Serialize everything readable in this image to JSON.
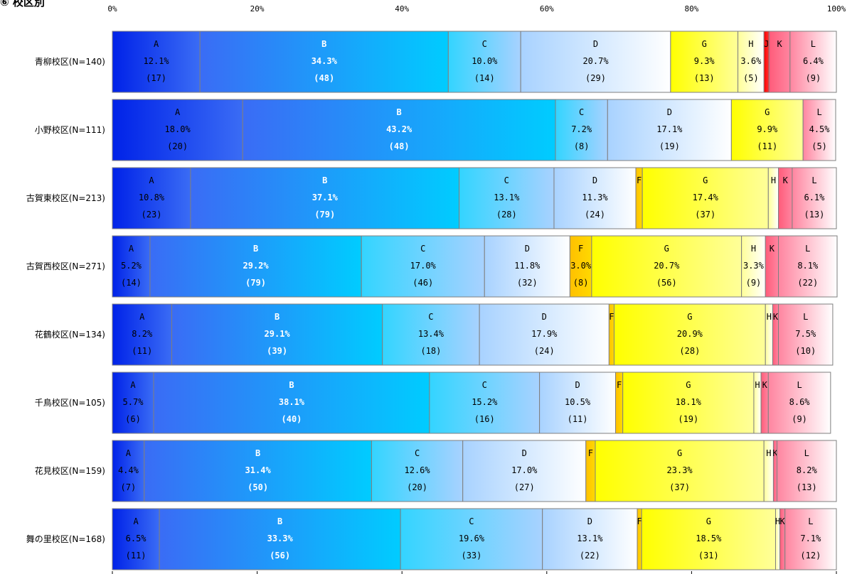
{
  "title": "⑥ 校区別",
  "chart_data": {
    "type": "bar",
    "orientation": "horizontal",
    "stacked": true,
    "percent": true,
    "title": "⑥ 校区別",
    "x_ticks": [
      "0%",
      "20%",
      "40%",
      "60%",
      "80%",
      "100%"
    ],
    "xlim": [
      0,
      100
    ],
    "segment_colors": {
      "A": [
        "#0022e8",
        "#3a6cf5"
      ],
      "B": [
        "#3a6cf5",
        "#00ccff"
      ],
      "C": [
        "#33d4ff",
        "#a8d2ff"
      ],
      "D": [
        "#a8d2ff",
        "#ffffff"
      ],
      "F": [
        "#ffc000",
        "#ffd900"
      ],
      "G": [
        "#ffff00",
        "#ffff99"
      ],
      "H": [
        "#ffff99",
        "#ffffff"
      ],
      "J": [
        "#ff0000",
        "#ff3333"
      ],
      "K": [
        "#ff5c7a",
        "#ff85a0"
      ],
      "L": [
        "#ff85a0",
        "#ffffff"
      ]
    },
    "rows": [
      {
        "label": "青柳校区(N=140)",
        "segments": [
          {
            "key": "A",
            "value": 12.1,
            "pct": "12.1%",
            "count": "(17)",
            "show": "full"
          },
          {
            "key": "B",
            "value": 34.3,
            "pct": "34.3%",
            "count": "(48)",
            "show": "full"
          },
          {
            "key": "C",
            "value": 10.0,
            "pct": "10.0%",
            "count": "(14)",
            "show": "full"
          },
          {
            "key": "D",
            "value": 20.7,
            "pct": "20.7%",
            "count": "(29)",
            "show": "full"
          },
          {
            "key": "G",
            "value": 9.3,
            "pct": "9.3%",
            "count": "(13)",
            "show": "full"
          },
          {
            "key": "H",
            "value": 3.6,
            "pct": "3.6%",
            "count": "(5)",
            "show": "full"
          },
          {
            "key": "J",
            "value": 0.7,
            "pct": "",
            "count": "",
            "show": "key"
          },
          {
            "key": "K",
            "value": 2.9,
            "pct": "",
            "count": "",
            "show": "key"
          },
          {
            "key": "L",
            "value": 6.4,
            "pct": "6.4%",
            "count": "(9)",
            "show": "full"
          }
        ]
      },
      {
        "label": "小野校区(N=111)",
        "segments": [
          {
            "key": "A",
            "value": 18.0,
            "pct": "18.0%",
            "count": "(20)",
            "show": "full"
          },
          {
            "key": "B",
            "value": 43.2,
            "pct": "43.2%",
            "count": "(48)",
            "show": "full"
          },
          {
            "key": "C",
            "value": 7.2,
            "pct": "7.2%",
            "count": "(8)",
            "show": "full"
          },
          {
            "key": "D",
            "value": 17.1,
            "pct": "17.1%",
            "count": "(19)",
            "show": "full"
          },
          {
            "key": "G",
            "value": 9.9,
            "pct": "9.9%",
            "count": "(11)",
            "show": "full"
          },
          {
            "key": "L",
            "value": 4.5,
            "pct": "4.5%",
            "count": "(5)",
            "show": "full"
          }
        ]
      },
      {
        "label": "古賀東校区(N=213)",
        "segments": [
          {
            "key": "A",
            "value": 10.8,
            "pct": "10.8%",
            "count": "(23)",
            "show": "full"
          },
          {
            "key": "B",
            "value": 37.1,
            "pct": "37.1%",
            "count": "(79)",
            "show": "full"
          },
          {
            "key": "C",
            "value": 13.1,
            "pct": "13.1%",
            "count": "(28)",
            "show": "full"
          },
          {
            "key": "D",
            "value": 11.3,
            "pct": "11.3%",
            "count": "(24)",
            "show": "full"
          },
          {
            "key": "F",
            "value": 0.9,
            "pct": "",
            "count": "",
            "show": "key"
          },
          {
            "key": "G",
            "value": 17.4,
            "pct": "17.4%",
            "count": "(37)",
            "show": "full"
          },
          {
            "key": "H",
            "value": 1.4,
            "pct": "",
            "count": "",
            "show": "key"
          },
          {
            "key": "K",
            "value": 1.9,
            "pct": "",
            "count": "",
            "show": "key"
          },
          {
            "key": "L",
            "value": 6.1,
            "pct": "6.1%",
            "count": "(13)",
            "show": "full"
          }
        ]
      },
      {
        "label": "古賀西校区(N=271)",
        "segments": [
          {
            "key": "A",
            "value": 5.2,
            "pct": "5.2%",
            "count": "(14)",
            "show": "full"
          },
          {
            "key": "B",
            "value": 29.2,
            "pct": "29.2%",
            "count": "(79)",
            "show": "full"
          },
          {
            "key": "C",
            "value": 17.0,
            "pct": "17.0%",
            "count": "(46)",
            "show": "full"
          },
          {
            "key": "D",
            "value": 11.8,
            "pct": "11.8%",
            "count": "(32)",
            "show": "full"
          },
          {
            "key": "F",
            "value": 3.0,
            "pct": "3.0%",
            "count": "(8)",
            "show": "full"
          },
          {
            "key": "G",
            "value": 20.7,
            "pct": "20.7%",
            "count": "(56)",
            "show": "full"
          },
          {
            "key": "H",
            "value": 3.3,
            "pct": "3.3%",
            "count": "(9)",
            "show": "full"
          },
          {
            "key": "K",
            "value": 1.8,
            "pct": "",
            "count": "",
            "show": "key"
          },
          {
            "key": "L",
            "value": 8.1,
            "pct": "8.1%",
            "count": "(22)",
            "show": "full"
          }
        ]
      },
      {
        "label": "花鶴校区(N=134)",
        "segments": [
          {
            "key": "A",
            "value": 8.2,
            "pct": "8.2%",
            "count": "(11)",
            "show": "full"
          },
          {
            "key": "B",
            "value": 29.1,
            "pct": "29.1%",
            "count": "(39)",
            "show": "full"
          },
          {
            "key": "C",
            "value": 13.4,
            "pct": "13.4%",
            "count": "(18)",
            "show": "full"
          },
          {
            "key": "D",
            "value": 17.9,
            "pct": "17.9%",
            "count": "(24)",
            "show": "full"
          },
          {
            "key": "F",
            "value": 0.7,
            "pct": "",
            "count": "",
            "show": "key"
          },
          {
            "key": "G",
            "value": 20.9,
            "pct": "20.9%",
            "count": "(28)",
            "show": "full"
          },
          {
            "key": "H",
            "value": 1.0,
            "pct": "",
            "count": "",
            "show": "key"
          },
          {
            "key": "K",
            "value": 0.8,
            "pct": "",
            "count": "",
            "show": "key"
          },
          {
            "key": "L",
            "value": 7.5,
            "pct": "7.5%",
            "count": "(10)",
            "show": "full"
          }
        ]
      },
      {
        "label": "千鳥校区(N=105)",
        "segments": [
          {
            "key": "A",
            "value": 5.7,
            "pct": "5.7%",
            "count": "(6)",
            "show": "full"
          },
          {
            "key": "B",
            "value": 38.1,
            "pct": "38.1%",
            "count": "(40)",
            "show": "full"
          },
          {
            "key": "C",
            "value": 15.2,
            "pct": "15.2%",
            "count": "(16)",
            "show": "full"
          },
          {
            "key": "D",
            "value": 10.5,
            "pct": "10.5%",
            "count": "(11)",
            "show": "full"
          },
          {
            "key": "F",
            "value": 1.0,
            "pct": "",
            "count": "",
            "show": "key"
          },
          {
            "key": "G",
            "value": 18.1,
            "pct": "18.1%",
            "count": "(19)",
            "show": "full"
          },
          {
            "key": "H",
            "value": 1.0,
            "pct": "",
            "count": "",
            "show": "key"
          },
          {
            "key": "K",
            "value": 1.0,
            "pct": "",
            "count": "",
            "show": "key"
          },
          {
            "key": "L",
            "value": 8.6,
            "pct": "8.6%",
            "count": "(9)",
            "show": "full"
          }
        ]
      },
      {
        "label": "花見校区(N=159)",
        "segments": [
          {
            "key": "A",
            "value": 4.4,
            "pct": "4.4%",
            "count": "(7)",
            "show": "full"
          },
          {
            "key": "B",
            "value": 31.4,
            "pct": "31.4%",
            "count": "(50)",
            "show": "full"
          },
          {
            "key": "C",
            "value": 12.6,
            "pct": "12.6%",
            "count": "(20)",
            "show": "full"
          },
          {
            "key": "D",
            "value": 17.0,
            "pct": "17.0%",
            "count": "(27)",
            "show": "full"
          },
          {
            "key": "F",
            "value": 1.3,
            "pct": "",
            "count": "",
            "show": "key"
          },
          {
            "key": "G",
            "value": 23.3,
            "pct": "23.3%",
            "count": "(37)",
            "show": "full"
          },
          {
            "key": "H",
            "value": 1.3,
            "pct": "",
            "count": "",
            "show": "key"
          },
          {
            "key": "K",
            "value": 0.5,
            "pct": "",
            "count": "",
            "show": "key"
          },
          {
            "key": "L",
            "value": 8.2,
            "pct": "8.2%",
            "count": "(13)",
            "show": "full"
          }
        ]
      },
      {
        "label": "舞の里校区(N=168)",
        "segments": [
          {
            "key": "A",
            "value": 6.5,
            "pct": "6.5%",
            "count": "(11)",
            "show": "full"
          },
          {
            "key": "B",
            "value": 33.3,
            "pct": "33.3%",
            "count": "(56)",
            "show": "full"
          },
          {
            "key": "C",
            "value": 19.6,
            "pct": "19.6%",
            "count": "(33)",
            "show": "full"
          },
          {
            "key": "D",
            "value": 13.1,
            "pct": "13.1%",
            "count": "(22)",
            "show": "full"
          },
          {
            "key": "F",
            "value": 0.6,
            "pct": "",
            "count": "",
            "show": "key"
          },
          {
            "key": "G",
            "value": 18.5,
            "pct": "18.5%",
            "count": "(31)",
            "show": "full"
          },
          {
            "key": "H",
            "value": 0.6,
            "pct": "",
            "count": "",
            "show": "key"
          },
          {
            "key": "K",
            "value": 0.7,
            "pct": "",
            "count": "",
            "show": "key"
          },
          {
            "key": "L",
            "value": 7.1,
            "pct": "7.1%",
            "count": "(12)",
            "show": "full"
          }
        ]
      }
    ]
  }
}
